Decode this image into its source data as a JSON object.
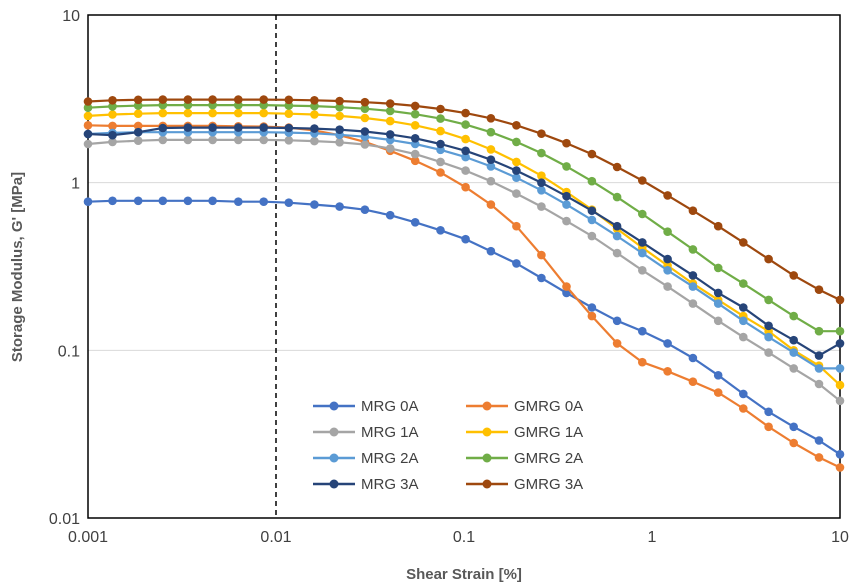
{
  "chart_data": {
    "type": "line",
    "title": "",
    "xlabel": "Shear Strain [%]",
    "ylabel": "Storage Modulus, G' [MPa]",
    "xscale": "log",
    "yscale": "log",
    "xlim": [
      0.001,
      10
    ],
    "ylim": [
      0.01,
      10
    ],
    "x_ticks": [
      "0.001",
      "0.01",
      "0.1",
      "1",
      "10"
    ],
    "y_ticks": [
      "0.01",
      "0.1",
      "1",
      "10"
    ],
    "grid": "horizontal major",
    "reference_line": {
      "x": 0.01,
      "style": "dashed"
    },
    "legend_position": "lower-center",
    "x": [
      0.001,
      0.00135,
      0.00185,
      0.0025,
      0.0034,
      0.0046,
      0.0063,
      0.0086,
      0.0117,
      0.016,
      0.0218,
      0.0297,
      0.0405,
      0.055,
      0.075,
      0.102,
      0.139,
      0.19,
      0.258,
      0.351,
      0.479,
      0.652,
      0.888,
      1.21,
      1.65,
      2.25,
      3.06,
      4.17,
      5.67,
      7.73,
      10
    ],
    "series": [
      {
        "name": "MRG 0A",
        "color": "#4472C4",
        "values": [
          0.77,
          0.78,
          0.78,
          0.78,
          0.78,
          0.78,
          0.77,
          0.77,
          0.76,
          0.74,
          0.72,
          0.69,
          0.64,
          0.58,
          0.52,
          0.46,
          0.39,
          0.33,
          0.27,
          0.22,
          0.18,
          0.15,
          0.13,
          0.11,
          0.09,
          0.071,
          0.055,
          0.043,
          0.035,
          0.029,
          0.024
        ]
      },
      {
        "name": "GMRG 0A",
        "color": "#ED7D31",
        "values": [
          2.2,
          2.18,
          2.18,
          2.18,
          2.18,
          2.18,
          2.17,
          2.16,
          2.13,
          2.05,
          1.92,
          1.75,
          1.55,
          1.35,
          1.15,
          0.94,
          0.74,
          0.55,
          0.37,
          0.24,
          0.16,
          0.11,
          0.085,
          0.075,
          0.065,
          0.056,
          0.045,
          0.035,
          0.028,
          0.023,
          0.02
        ]
      },
      {
        "name": "MRG 1A",
        "color": "#A5A5A5",
        "values": [
          1.7,
          1.75,
          1.78,
          1.8,
          1.8,
          1.8,
          1.8,
          1.8,
          1.79,
          1.77,
          1.74,
          1.69,
          1.6,
          1.48,
          1.33,
          1.18,
          1.02,
          0.86,
          0.72,
          0.59,
          0.48,
          0.38,
          0.3,
          0.24,
          0.19,
          0.15,
          0.12,
          0.097,
          0.078,
          0.063,
          0.05
        ]
      },
      {
        "name": "GMRG 1A",
        "color": "#FFC000",
        "values": [
          2.5,
          2.55,
          2.58,
          2.6,
          2.6,
          2.6,
          2.6,
          2.6,
          2.58,
          2.55,
          2.5,
          2.43,
          2.33,
          2.2,
          2.03,
          1.82,
          1.58,
          1.33,
          1.1,
          0.88,
          0.69,
          0.53,
          0.41,
          0.32,
          0.25,
          0.2,
          0.16,
          0.13,
          0.1,
          0.081,
          0.062
        ]
      },
      {
        "name": "MRG 2A",
        "color": "#5B9BD5",
        "values": [
          1.95,
          1.98,
          2.0,
          2.0,
          2.0,
          2.0,
          2.0,
          2.0,
          1.99,
          1.97,
          1.93,
          1.88,
          1.8,
          1.7,
          1.57,
          1.42,
          1.25,
          1.07,
          0.9,
          0.74,
          0.6,
          0.48,
          0.38,
          0.3,
          0.24,
          0.19,
          0.15,
          0.12,
          0.097,
          0.078,
          0.078
        ]
      },
      {
        "name": "GMRG 2A",
        "color": "#70AD47",
        "values": [
          2.8,
          2.85,
          2.88,
          2.9,
          2.9,
          2.9,
          2.9,
          2.9,
          2.88,
          2.86,
          2.82,
          2.76,
          2.68,
          2.56,
          2.41,
          2.22,
          2.0,
          1.75,
          1.5,
          1.25,
          1.02,
          0.82,
          0.65,
          0.51,
          0.4,
          0.31,
          0.25,
          0.2,
          0.16,
          0.13,
          0.13
        ]
      },
      {
        "name": "MRG 3A",
        "color": "#264478",
        "values": [
          1.95,
          1.92,
          2.0,
          2.12,
          2.13,
          2.13,
          2.13,
          2.13,
          2.12,
          2.1,
          2.07,
          2.02,
          1.94,
          1.84,
          1.7,
          1.55,
          1.37,
          1.18,
          1.0,
          0.83,
          0.68,
          0.55,
          0.44,
          0.35,
          0.28,
          0.22,
          0.18,
          0.14,
          0.115,
          0.093,
          0.11
        ]
      },
      {
        "name": "GMRG 3A",
        "color": "#9E480E",
        "values": [
          3.05,
          3.1,
          3.12,
          3.13,
          3.13,
          3.13,
          3.13,
          3.13,
          3.12,
          3.1,
          3.07,
          3.02,
          2.96,
          2.87,
          2.75,
          2.6,
          2.42,
          2.2,
          1.96,
          1.72,
          1.48,
          1.24,
          1.03,
          0.84,
          0.68,
          0.55,
          0.44,
          0.35,
          0.28,
          0.23,
          0.2
        ]
      }
    ]
  }
}
